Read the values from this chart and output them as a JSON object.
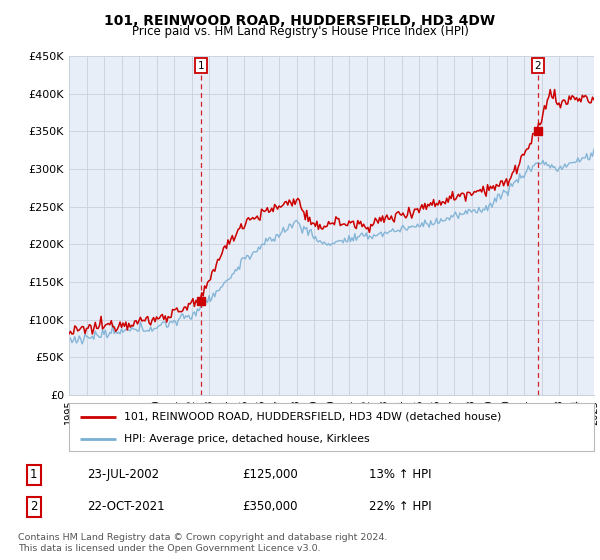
{
  "title": "101, REINWOOD ROAD, HUDDERSFIELD, HD3 4DW",
  "subtitle": "Price paid vs. HM Land Registry's House Price Index (HPI)",
  "ylabel_ticks": [
    0,
    50000,
    100000,
    150000,
    200000,
    250000,
    300000,
    350000,
    400000,
    450000
  ],
  "ylabel_labels": [
    "£0",
    "£50K",
    "£100K",
    "£150K",
    "£200K",
    "£250K",
    "£300K",
    "£350K",
    "£400K",
    "£450K"
  ],
  "x_start_year": 1995,
  "x_end_year": 2025,
  "sale1_year": 2002.55,
  "sale1_price": 125000,
  "sale1_label": "23-JUL-2002",
  "sale1_price_str": "£125,000",
  "sale1_pct": "13% ↑ HPI",
  "sale2_year": 2021.8,
  "sale2_price": 350000,
  "sale2_label": "22-OCT-2021",
  "sale2_price_str": "£350,000",
  "sale2_pct": "22% ↑ HPI",
  "red_color": "#cc0000",
  "blue_color": "#7ab0d4",
  "bg_color": "#ffffff",
  "plot_bg_color": "#e8eef8",
  "grid_color": "#c8d0dc",
  "footnote": "Contains HM Land Registry data © Crown copyright and database right 2024.\nThis data is licensed under the Open Government Licence v3.0.",
  "legend_line1": "101, REINWOOD ROAD, HUDDERSFIELD, HD3 4DW (detached house)",
  "legend_line2": "HPI: Average price, detached house, Kirklees"
}
